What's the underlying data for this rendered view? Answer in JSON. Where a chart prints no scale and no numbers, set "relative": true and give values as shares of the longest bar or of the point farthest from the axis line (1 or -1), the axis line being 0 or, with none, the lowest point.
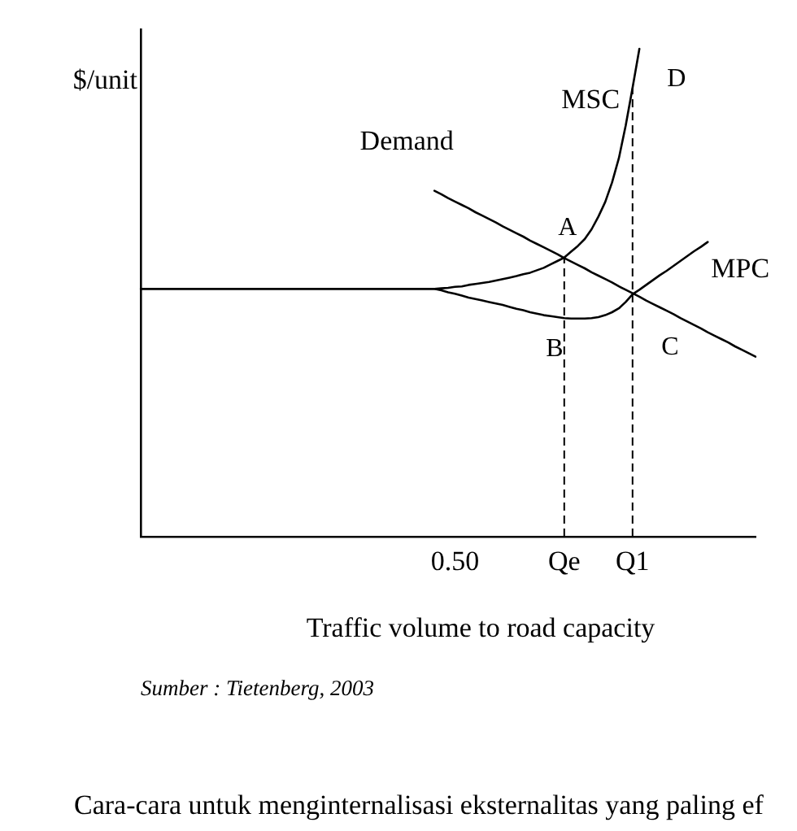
{
  "chart_data": {
    "type": "line",
    "relative": true,
    "ylabel": "$/unit",
    "xlabel": "Traffic volume to road capacity",
    "line_style": "solid",
    "categories": [
      null,
      null,
      null,
      null,
      null,
      null,
      null,
      null,
      null,
      null,
      null,
      null,
      null,
      null,
      null,
      null,
      null,
      null,
      null,
      null,
      null,
      null,
      null,
      null,
      null,
      null,
      null,
      null,
      null,
      null,
      null,
      null,
      null,
      null,
      null,
      null,
      null,
      null,
      null,
      null,
      null,
      null,
      null,
      null,
      null,
      null,
      "0.50",
      null,
      null,
      null,
      null,
      null,
      null,
      null,
      null,
      null,
      null,
      null,
      null,
      null,
      null,
      null,
      "Qe",
      null,
      null,
      null,
      null,
      null,
      null,
      null,
      null,
      null,
      "Q1",
      null,
      null,
      null,
      null,
      null,
      null,
      null,
      null,
      null,
      null,
      null,
      null,
      null,
      null,
      null,
      null,
      null,
      null
    ],
    "series": [
      {
        "name": "Demand",
        "color": "#000000",
        "values": [
          null,
          null,
          null,
          null,
          null,
          null,
          null,
          null,
          null,
          null,
          null,
          null,
          null,
          null,
          null,
          null,
          null,
          null,
          null,
          null,
          null,
          null,
          null,
          null,
          null,
          null,
          null,
          null,
          null,
          null,
          null,
          null,
          null,
          null,
          null,
          null,
          null,
          null,
          null,
          null,
          null,
          null,
          null,
          0.709,
          0.702,
          0.694,
          0.687,
          0.68,
          0.673,
          0.665,
          0.658,
          0.651,
          0.644,
          0.636,
          0.629,
          0.622,
          0.615,
          0.607,
          0.6,
          0.593,
          0.586,
          0.579,
          0.571,
          0.564,
          0.557,
          0.55,
          0.542,
          0.535,
          0.528,
          0.521,
          0.513,
          0.506,
          0.499,
          0.492,
          0.484,
          0.477,
          0.47,
          0.463,
          0.456,
          0.448,
          0.441,
          0.434,
          0.427,
          0.419,
          0.412,
          0.405,
          0.398,
          0.39,
          0.383,
          0.376,
          0.369
        ]
      },
      {
        "name": "MSC",
        "color": "#000000",
        "values": [
          0.508,
          0.508,
          0.508,
          0.508,
          0.508,
          0.508,
          0.508,
          0.508,
          0.508,
          0.508,
          0.508,
          0.508,
          0.508,
          0.508,
          0.508,
          0.508,
          0.508,
          0.508,
          0.508,
          0.508,
          0.508,
          0.508,
          0.508,
          0.508,
          0.508,
          0.508,
          0.508,
          0.508,
          0.508,
          0.508,
          0.508,
          0.508,
          0.508,
          0.508,
          0.508,
          0.508,
          0.508,
          0.508,
          0.508,
          0.508,
          0.508,
          0.508,
          0.508,
          0.508,
          0.509,
          0.51,
          0.512,
          0.513,
          0.516,
          0.518,
          0.52,
          0.522,
          0.525,
          0.528,
          0.531,
          0.534,
          0.538,
          0.541,
          0.546,
          0.551,
          0.558,
          0.565,
          0.572,
          0.584,
          0.596,
          0.61,
          0.63,
          0.656,
          0.686,
          0.726,
          0.776,
          0.843,
          0.92,
          1.0,
          null,
          null,
          null,
          null,
          null,
          null,
          null,
          null,
          null,
          null,
          null,
          null,
          null,
          null,
          null,
          null,
          null
        ]
      },
      {
        "name": "MPC",
        "color": "#000000",
        "values": [
          0.508,
          0.508,
          0.508,
          0.508,
          0.508,
          0.508,
          0.508,
          0.508,
          0.508,
          0.508,
          0.508,
          0.508,
          0.508,
          0.508,
          0.508,
          0.508,
          0.508,
          0.508,
          0.508,
          0.508,
          0.508,
          0.508,
          0.508,
          0.508,
          0.508,
          0.508,
          0.508,
          0.508,
          0.508,
          0.508,
          0.508,
          0.508,
          0.508,
          0.508,
          0.508,
          0.508,
          0.508,
          0.508,
          0.508,
          0.508,
          0.508,
          0.508,
          0.508,
          0.508,
          0.505,
          0.501,
          0.498,
          0.494,
          0.49,
          0.487,
          0.484,
          0.481,
          0.478,
          0.475,
          0.471,
          0.467,
          0.464,
          0.46,
          0.457,
          0.454,
          0.452,
          0.45,
          0.448,
          0.447,
          0.447,
          0.447,
          0.448,
          0.45,
          0.454,
          0.46,
          0.468,
          0.481,
          0.497,
          0.506,
          0.516,
          0.526,
          0.536,
          0.545,
          0.555,
          0.565,
          0.575,
          0.585,
          0.594,
          0.604,
          null,
          null,
          null,
          null,
          null,
          null,
          null
        ]
      }
    ],
    "ref_lines": [
      {
        "axis": "x",
        "value": "Qe",
        "line_style": "dashed",
        "color": "#000000"
      },
      {
        "axis": "x",
        "value": "Q1",
        "line_style": "dashed",
        "color": "#000000"
      }
    ],
    "annotations": [
      {
        "text": "A",
        "x": "Qe",
        "y": 0.572
      },
      {
        "text": "B",
        "x": "Qe",
        "y": 0.448
      },
      {
        "text": "C",
        "x": "Q1",
        "y": 0.497
      },
      {
        "text": "D",
        "x": "Q1",
        "y": 0.92
      },
      "Sumber : Tietenberg, 2003",
      "Cara-cara untuk menginternalisasi eksternalitas yang paling ef"
    ]
  }
}
